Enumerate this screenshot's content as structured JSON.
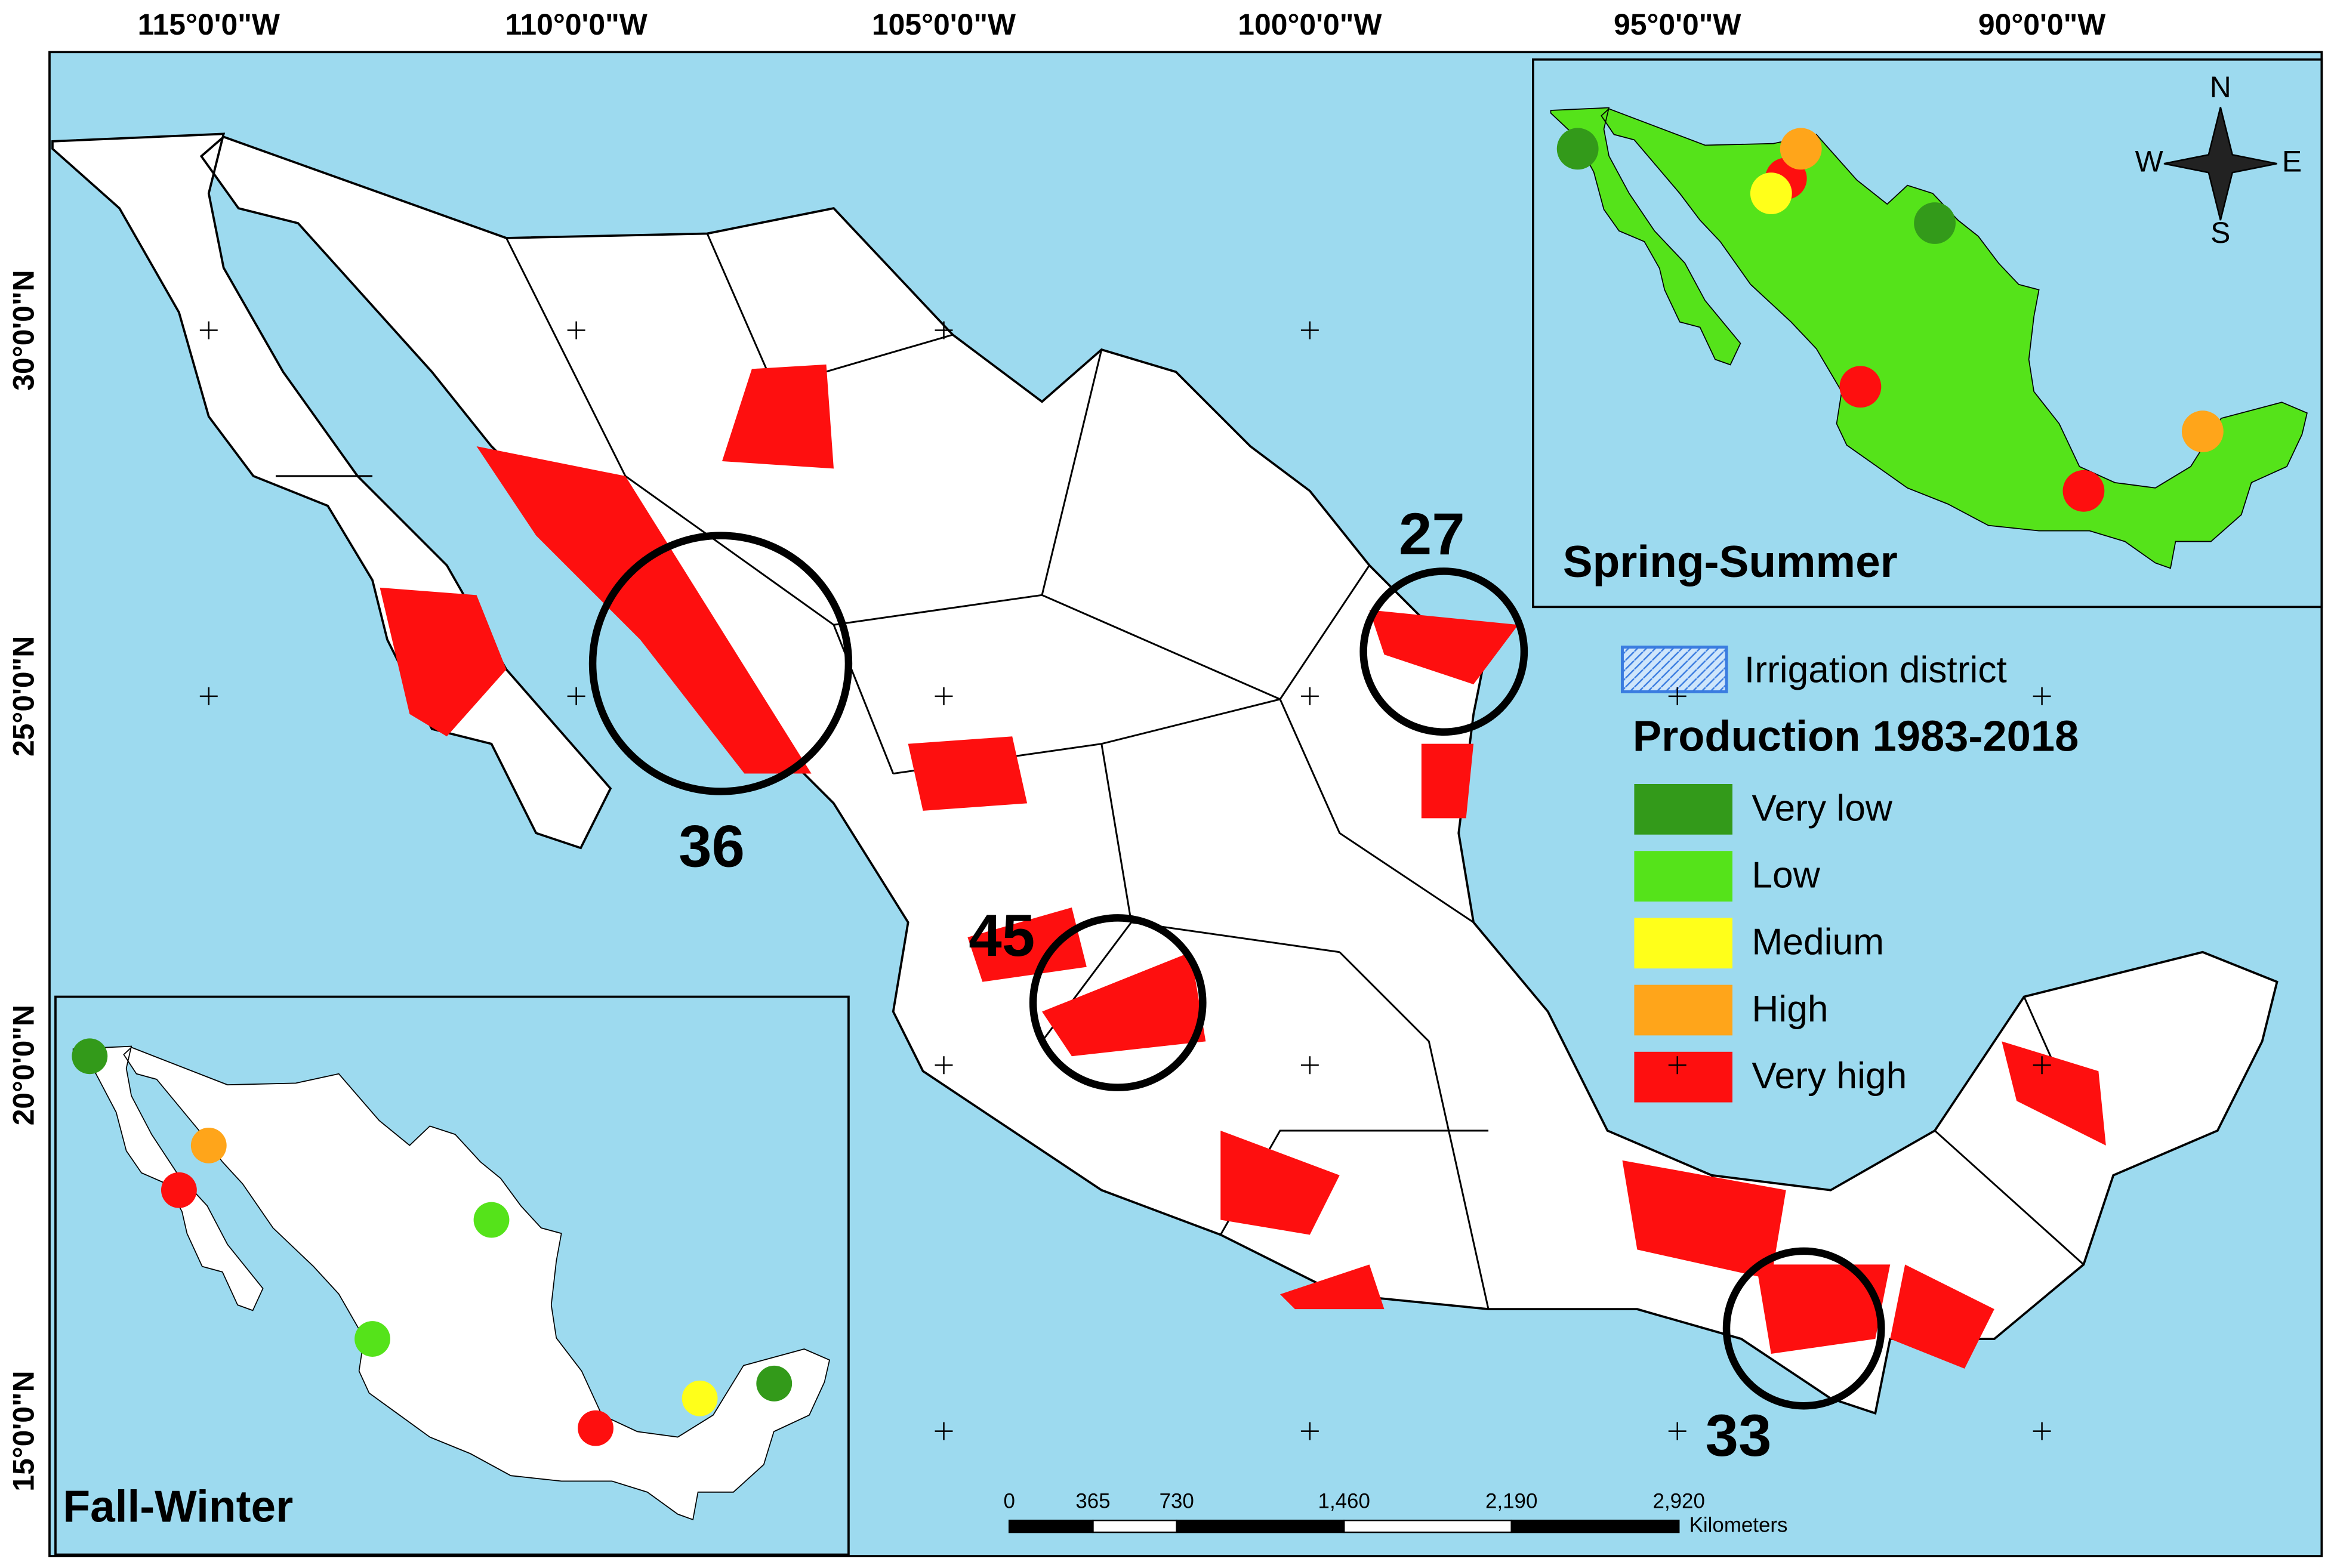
{
  "axes": {
    "top": [
      "115°0'0\"W",
      "110°0'0\"W",
      "105°0'0\"W",
      "100°0'0\"W",
      "95°0'0\"W",
      "90°0'0\"W"
    ],
    "left": [
      "30°0'0\"N",
      "25°0'0\"N",
      "20°0'0\"N",
      "15°0'0\"N"
    ]
  },
  "hotspots": [
    36,
    27,
    45,
    33
  ],
  "legend": {
    "irrigation": "Irrigation district",
    "title": "Production 1983-2018",
    "classes": [
      {
        "label": "Very low",
        "color": "#339a1a"
      },
      {
        "label": "Low",
        "color": "#55e31a"
      },
      {
        "label": "Medium",
        "color": "#ffff1a"
      },
      {
        "label": "High",
        "color": "#ffa51a"
      },
      {
        "label": "Very high",
        "color": "#fe0f0f"
      }
    ]
  },
  "scale": {
    "ticks": [
      0,
      365,
      730,
      {
        "value": 1460,
        "label": "1,460"
      },
      {
        "value": 2190,
        "label": "2,190"
      },
      {
        "value": 2920,
        "label": "2,920"
      }
    ],
    "unit": "Kilometers"
  },
  "compass": {
    "n": "N",
    "e": "E",
    "s": "S",
    "w": "W"
  },
  "insets": {
    "spring": "Spring-Summer",
    "fall": "Fall-Winter"
  }
}
